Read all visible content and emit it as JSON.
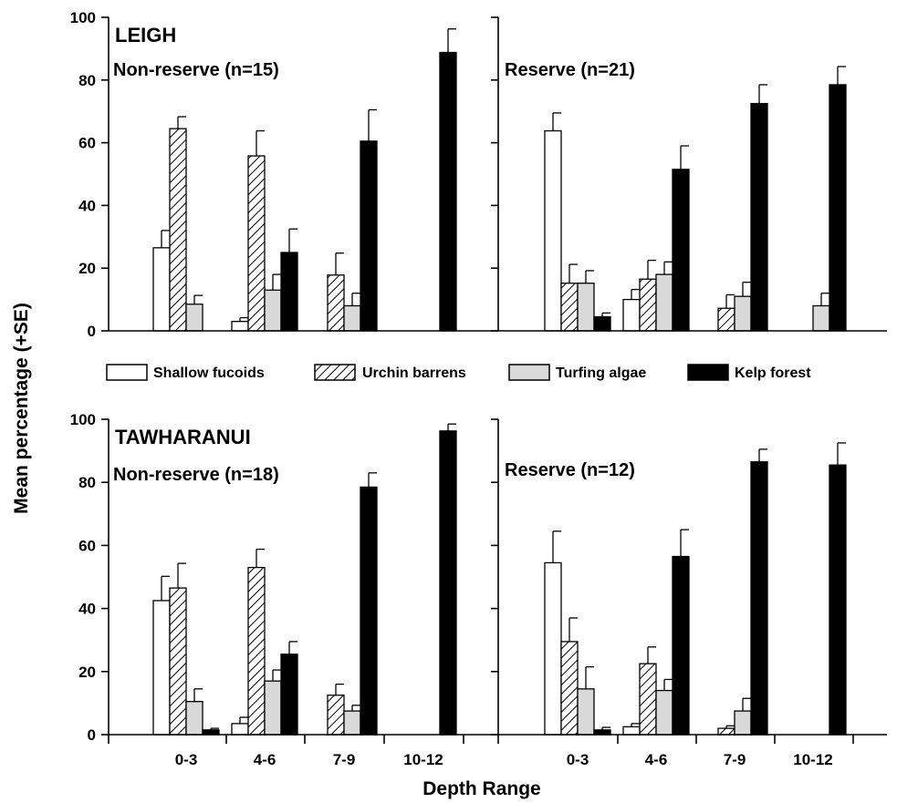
{
  "chart_data": {
    "type": "bar",
    "ylabel": "Mean percentage (+SE)",
    "xlabel": "Depth Range",
    "ylim": [
      0,
      100
    ],
    "yticks": [
      0,
      20,
      40,
      60,
      80,
      100
    ],
    "categories": [
      "0-3",
      "4-6",
      "7-9",
      "10-12"
    ],
    "series_names": [
      "Shallow fucoids",
      "Urchin barrens",
      "Turfing algae",
      "Kelp forest"
    ],
    "fills": {
      "shallow": "#ffffff",
      "turf": "#d9d9d9",
      "kelp": "#000000",
      "stroke": "#000000"
    },
    "legend_placement": "between rows",
    "rows": [
      {
        "site": "LEIGH",
        "panels": [
          {
            "label": "Non-reserve (n=15)",
            "series": [
              {
                "name": "Shallow fucoids",
                "values": [
                  26.5,
                  3.0,
                  0,
                  0
                ],
                "errors": [
                  5.5,
                  1.2,
                  0,
                  0
                ]
              },
              {
                "name": "Urchin barrens",
                "values": [
                  64.5,
                  55.8,
                  17.8,
                  0
                ],
                "errors": [
                  3.8,
                  8.0,
                  7.0,
                  0
                ]
              },
              {
                "name": "Turfing algae",
                "values": [
                  8.5,
                  13.0,
                  8.0,
                  0
                ],
                "errors": [
                  2.8,
                  5.0,
                  4.0,
                  0
                ]
              },
              {
                "name": "Kelp forest",
                "values": [
                  0,
                  25.0,
                  60.5,
                  88.8
                ],
                "errors": [
                  0,
                  7.5,
                  10.0,
                  7.5
                ]
              }
            ]
          },
          {
            "label": "Reserve (n=21)",
            "series": [
              {
                "name": "Shallow fucoids",
                "values": [
                  63.8,
                  10.0,
                  0,
                  0
                ],
                "errors": [
                  5.7,
                  3.2,
                  0,
                  0
                ]
              },
              {
                "name": "Urchin barrens",
                "values": [
                  15.2,
                  16.5,
                  7.2,
                  0
                ],
                "errors": [
                  6.0,
                  6.0,
                  4.3,
                  0
                ]
              },
              {
                "name": "Turfing algae",
                "values": [
                  15.2,
                  18.0,
                  11.0,
                  8.0
                ],
                "errors": [
                  4.0,
                  4.0,
                  4.5,
                  4.0
                ]
              },
              {
                "name": "Kelp forest",
                "values": [
                  4.5,
                  51.5,
                  72.5,
                  78.5
                ],
                "errors": [
                  1.2,
                  7.5,
                  6.0,
                  5.8
                ]
              }
            ]
          }
        ]
      },
      {
        "site": "TAWHARANUI",
        "panels": [
          {
            "label": "Non-reserve (n=18)",
            "series": [
              {
                "name": "Shallow fucoids",
                "values": [
                  42.5,
                  3.5,
                  0,
                  0
                ],
                "errors": [
                  7.7,
                  2.0,
                  0,
                  0
                ]
              },
              {
                "name": "Urchin barrens",
                "values": [
                  46.5,
                  53.0,
                  12.5,
                  0
                ],
                "errors": [
                  7.8,
                  5.8,
                  3.5,
                  0
                ]
              },
              {
                "name": "Turfing algae",
                "values": [
                  10.5,
                  17.0,
                  7.5,
                  0
                ],
                "errors": [
                  4.0,
                  3.5,
                  1.8,
                  0
                ]
              },
              {
                "name": "Kelp forest",
                "values": [
                  1.5,
                  25.5,
                  78.5,
                  96.3
                ],
                "errors": [
                  0.5,
                  4.0,
                  4.5,
                  2.2
                ]
              }
            ]
          },
          {
            "label": "Reserve (n=12)",
            "series": [
              {
                "name": "Shallow fucoids",
                "values": [
                  54.5,
                  2.5,
                  0,
                  0
                ],
                "errors": [
                  10.0,
                  1.0,
                  0,
                  0
                ]
              },
              {
                "name": "Urchin barrens",
                "values": [
                  29.5,
                  22.5,
                  2.0,
                  0
                ],
                "errors": [
                  7.5,
                  5.3,
                  0.8,
                  0
                ]
              },
              {
                "name": "Turfing algae",
                "values": [
                  14.5,
                  14.0,
                  7.5,
                  0
                ],
                "errors": [
                  7.0,
                  3.5,
                  4.0,
                  0
                ]
              },
              {
                "name": "Kelp forest",
                "values": [
                  1.5,
                  56.5,
                  86.5,
                  85.5
                ],
                "errors": [
                  0.8,
                  8.5,
                  4.0,
                  7.0
                ]
              }
            ]
          }
        ]
      }
    ]
  }
}
